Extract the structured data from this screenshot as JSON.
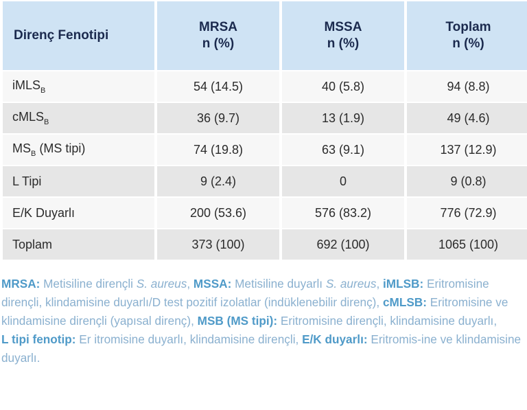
{
  "table": {
    "headers": [
      {
        "line1": "Direnç Fenotipi",
        "line2": ""
      },
      {
        "line1": "MRSA",
        "line2": "n (%)"
      },
      {
        "line1": "MSSA",
        "line2": "n (%)"
      },
      {
        "line1": "Toplam",
        "line2": "n (%)"
      }
    ],
    "rows": [
      {
        "label": "iMLS",
        "sub": "B",
        "suffix": "",
        "mrsa": "54 (14.5)",
        "mssa": "40 (5.8)",
        "total": "94 (8.8)"
      },
      {
        "label": "cMLS",
        "sub": "B",
        "suffix": "",
        "mrsa": "36 (9.7)",
        "mssa": "13 (1.9)",
        "total": "49 (4.6)"
      },
      {
        "label": "MS",
        "sub": "B",
        "suffix": " (MS tipi)",
        "mrsa": "74 (19.8)",
        "mssa": "63 (9.1)",
        "total": "137 (12.9)"
      },
      {
        "label": "L Tipi",
        "sub": "",
        "suffix": "",
        "mrsa": "9 (2.4)",
        "mssa": "0",
        "total": "9 (0.8)"
      },
      {
        "label": "E/K Duyarlı",
        "sub": "",
        "suffix": "",
        "mrsa": "200 (53.6)",
        "mssa": "576 (83.2)",
        "total": "776 (72.9)"
      },
      {
        "label": "Toplam",
        "sub": "",
        "suffix": "",
        "mrsa": "373 (100)",
        "mssa": "692 (100)",
        "total": "1065 (100)"
      }
    ]
  },
  "notes": {
    "mrsa_term": "MRSA:",
    "mrsa_def": " Metisiline dirençli ",
    "mrsa_species": "S. aureus",
    "mrsa_sep": ", ",
    "mssa_term": "MSSA:",
    "mssa_def": " Metisiline duyarlı ",
    "mssa_species": "S. aureus",
    "mssa_sep": ", ",
    "imlsb_term": "iMLSB:",
    "imlsb_def": " Eritromisine dirençli, klindamisine duyarlı/D test pozitif izolatlar (indüklenebilir direnç), ",
    "cmlsb_term": "cMLSB:",
    "cmlsb_def": " Eritromisine ve klindamisine dirençli (yapısal direnç), ",
    "msb_term": "MSB (MS tipi):",
    "msb_def": " Eritromisine dirençli, klindamisine duyarlı,",
    "ltipi_term": "L tipi fenotip:",
    "ltipi_def": " Er itromisine duyarlı, klindamisine dirençli, ",
    "ek_term": "E/K duyarlı:",
    "ek_def": " Eritromis-ine ve klindamisine duyarlı."
  },
  "colors": {
    "header_bg": "#cfe3f4",
    "header_text": "#1b2a4e",
    "row_light": "#f7f7f7",
    "row_dark": "#e6e6e6",
    "note_term": "#4f9ac8",
    "note_text": "#8ab0cf"
  }
}
